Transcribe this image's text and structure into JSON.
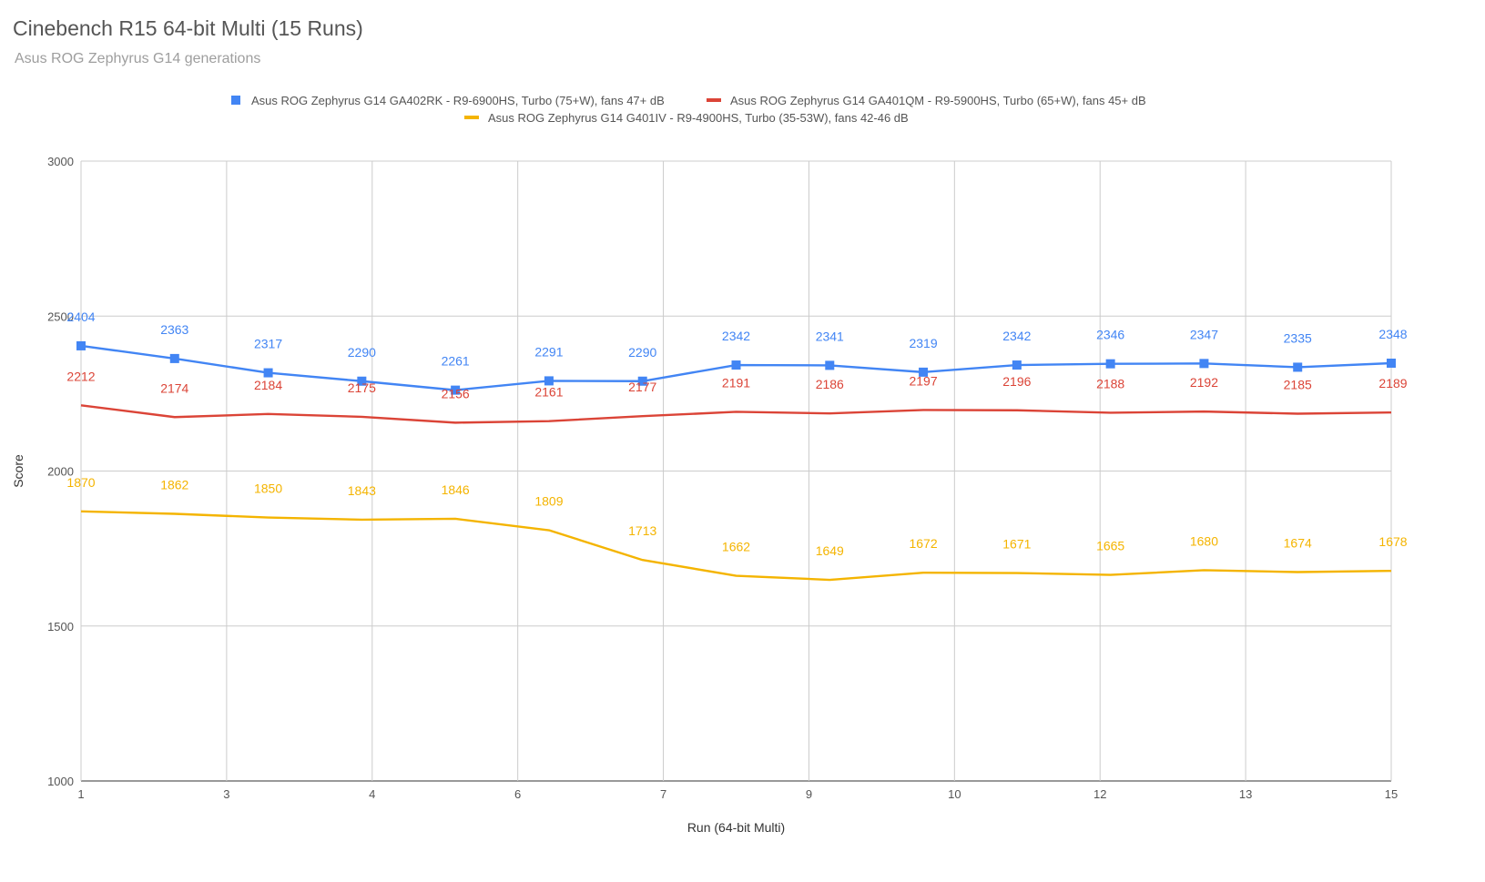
{
  "chart_data": {
    "type": "line",
    "title": "Cinebench R15 64-bit Multi (15 Runs)",
    "subtitle": "Asus ROG Zephyrus G14 generations",
    "xlabel": "Run (64-bit Multi)",
    "ylabel": "Score",
    "ylim": [
      1000,
      3000
    ],
    "xlim": [
      1,
      15
    ],
    "y_ticks": [
      "3000",
      "2500",
      "2000",
      "1500",
      "1000"
    ],
    "x_ticks": [
      "1",
      "3",
      "4",
      "6",
      "7",
      "9",
      "10",
      "12",
      "13",
      "15"
    ],
    "grid": true,
    "legend_position": "top",
    "series": [
      {
        "name": "Asus ROG Zephyrus G14 GA402RK - R9-6900HS, Turbo (75+W), fans 47+ dB",
        "color": "#4285f4",
        "marker": "square",
        "values": [
          2404,
          2363,
          2317,
          2290,
          2261,
          2291,
          2290,
          2342,
          2341,
          2319,
          2342,
          2346,
          2347,
          2335,
          2348
        ]
      },
      {
        "name": "Asus ROG Zephyrus G14 GA401QM - R9-5900HS, Turbo (65+W), fans 45+ dB",
        "color": "#db4437",
        "marker": "none",
        "values": [
          2212,
          2174,
          2184,
          2175,
          2156,
          2161,
          2177,
          2191,
          2186,
          2197,
          2196,
          2188,
          2192,
          2185,
          2189
        ]
      },
      {
        "name": "Asus ROG Zephyrus G14 G401IV - R9-4900HS, Turbo (35-53W), fans 42-46 dB",
        "color": "#f4b400",
        "marker": "none",
        "values": [
          1870,
          1862,
          1850,
          1843,
          1846,
          1809,
          1713,
          1662,
          1649,
          1672,
          1671,
          1665,
          1680,
          1674,
          1678
        ]
      }
    ]
  }
}
